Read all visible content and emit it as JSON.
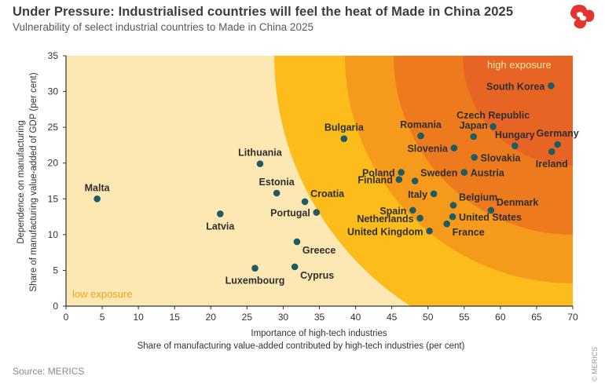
{
  "header": {
    "title": "Under Pressure: Industrialised countries will feel the heat of Made in China 2025",
    "subtitle": "Vulnerability of select industrial countries to Made in China 2025"
  },
  "footer": {
    "source": "Source: MERICS",
    "copyright": "© MERICS"
  },
  "colors": {
    "background_plot": "#fde7b2",
    "zone_1": "#fbbc1c",
    "zone_2": "#f59a1b",
    "zone_3": "#ee7a1e",
    "zone_4": "#e86425",
    "marker": "#1f5b62",
    "logo_red": "#e3342f"
  },
  "chart_data": {
    "type": "scatter",
    "xlabel": [
      "Importance of high-tech industries",
      "Share of manufacturing value-added contributed by high-tech industries (per cent)"
    ],
    "ylabel": [
      "Dependence on manufacturing",
      "Share of manufacturing value-added of GDP (per cent)"
    ],
    "xlim": [
      0,
      70
    ],
    "ylim": [
      0,
      35
    ],
    "xticks": [
      0,
      5,
      10,
      15,
      20,
      25,
      30,
      35,
      40,
      45,
      50,
      55,
      60,
      65,
      70
    ],
    "yticks": [
      0,
      5,
      10,
      15,
      20,
      25,
      30,
      35
    ],
    "zone_labels": {
      "high": "high exposure",
      "low": "low exposure"
    },
    "points": [
      {
        "label": "Malta",
        "x": 4.3,
        "y": 15.0,
        "label_pos": "above"
      },
      {
        "label": "Latvia",
        "x": 21.3,
        "y": 12.9,
        "label_pos": "below"
      },
      {
        "label": "Lithuania",
        "x": 26.8,
        "y": 19.9,
        "label_pos": "above"
      },
      {
        "label": "Luxembourg",
        "x": 26.1,
        "y": 5.3,
        "label_pos": "below"
      },
      {
        "label": "Estonia",
        "x": 29.1,
        "y": 15.8,
        "label_pos": "above"
      },
      {
        "label": "Greece",
        "x": 31.9,
        "y": 9.0,
        "label_pos": "below-right"
      },
      {
        "label": "Cyprus",
        "x": 31.6,
        "y": 5.5,
        "label_pos": "below-right"
      },
      {
        "label": "Croatia",
        "x": 33.0,
        "y": 14.6,
        "label_pos": "above-right"
      },
      {
        "label": "Portugal",
        "x": 34.6,
        "y": 13.1,
        "label_pos": "left"
      },
      {
        "label": "Bulgaria",
        "x": 38.4,
        "y": 23.4,
        "label_pos": "above"
      },
      {
        "label": "Romania",
        "x": 49.0,
        "y": 23.8,
        "label_pos": "above"
      },
      {
        "label": "Poland",
        "x": 46.3,
        "y": 18.7,
        "label_pos": "left"
      },
      {
        "label": "Finland",
        "x": 46.0,
        "y": 17.7,
        "label_pos": "left"
      },
      {
        "label": "Sweden",
        "x": 48.2,
        "y": 17.5,
        "label_pos": "above-right"
      },
      {
        "label": "Italy",
        "x": 50.8,
        "y": 15.7,
        "label_pos": "left"
      },
      {
        "label": "Spain",
        "x": 47.9,
        "y": 13.4,
        "label_pos": "left"
      },
      {
        "label": "Netherlands",
        "x": 48.9,
        "y": 12.3,
        "label_pos": "left"
      },
      {
        "label": "United Kingdom",
        "x": 50.2,
        "y": 10.5,
        "label_pos": "left"
      },
      {
        "label": "Slovenia",
        "x": 53.6,
        "y": 22.1,
        "label_pos": "left"
      },
      {
        "label": "Japan",
        "x": 56.3,
        "y": 23.7,
        "label_pos": "above"
      },
      {
        "label": "Czech Republic",
        "x": 59.0,
        "y": 25.1,
        "label_pos": "above"
      },
      {
        "label": "Slovakia",
        "x": 56.4,
        "y": 20.8,
        "label_pos": "right"
      },
      {
        "label": "Austria",
        "x": 55.0,
        "y": 18.7,
        "label_pos": "right"
      },
      {
        "label": "Belgium",
        "x": 53.5,
        "y": 14.1,
        "label_pos": "above-right"
      },
      {
        "label": "United States",
        "x": 53.4,
        "y": 12.5,
        "label_pos": "right"
      },
      {
        "label": "France",
        "x": 52.6,
        "y": 11.5,
        "label_pos": "below-right"
      },
      {
        "label": "Denmark",
        "x": 58.7,
        "y": 13.4,
        "label_pos": "above-right"
      },
      {
        "label": "Hungary",
        "x": 62.0,
        "y": 22.4,
        "label_pos": "above"
      },
      {
        "label": "Germany",
        "x": 67.9,
        "y": 22.6,
        "label_pos": "above"
      },
      {
        "label": "Ireland",
        "x": 67.1,
        "y": 21.6,
        "label_pos": "below"
      },
      {
        "label": "South Korea",
        "x": 67.0,
        "y": 30.8,
        "label_pos": "left"
      }
    ]
  }
}
